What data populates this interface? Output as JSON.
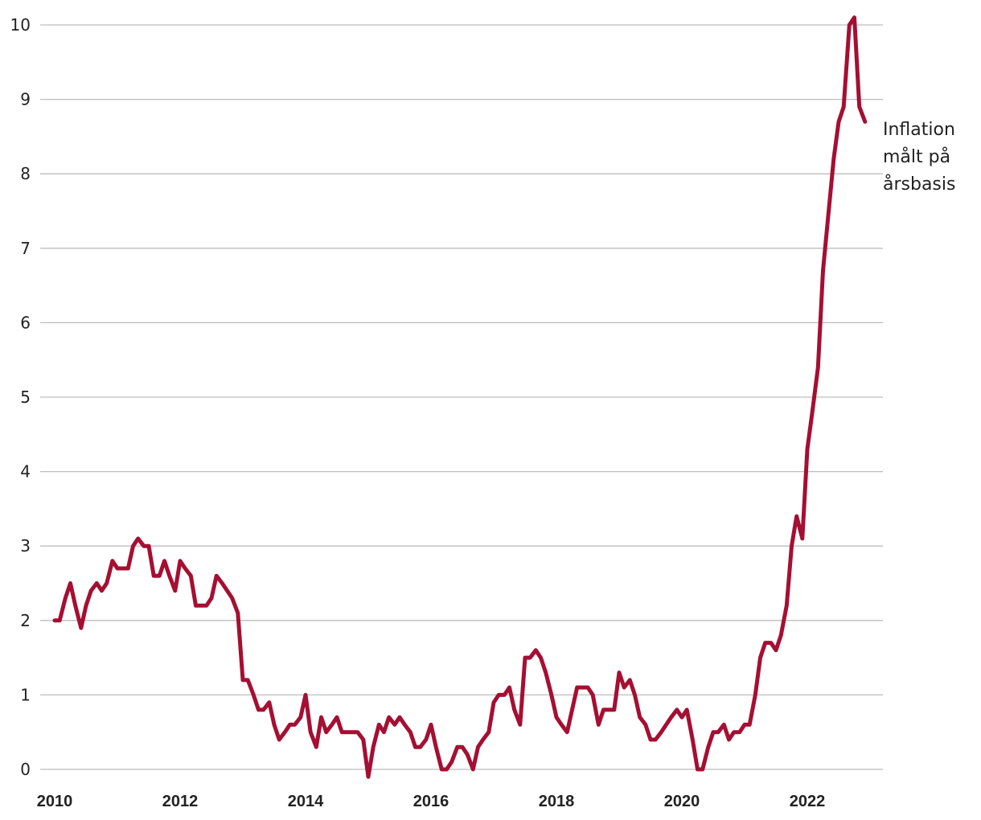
{
  "chart_data": {
    "type": "line",
    "title": "",
    "xlabel": "",
    "ylabel": "",
    "xlim": [
      2010,
      2023.2
    ],
    "ylim": [
      0,
      10
    ],
    "grid": true,
    "yticks": [
      "0",
      "1",
      "2",
      "3",
      "4",
      "5",
      "6",
      "7",
      "8",
      "9",
      "10"
    ],
    "xticks": [
      "2010",
      "2012",
      "2014",
      "2016",
      "2018",
      "2020",
      "2022"
    ],
    "series": [
      {
        "name": "Inflation målt på årsbasis",
        "label_lines": [
          "Inflation",
          "målt på",
          "årsbasis"
        ],
        "color": "#a50f32",
        "x": [
          2010.0,
          2010.08,
          2010.17,
          2010.25,
          2010.33,
          2010.42,
          2010.5,
          2010.58,
          2010.67,
          2010.75,
          2010.83,
          2010.92,
          2011.0,
          2011.08,
          2011.17,
          2011.25,
          2011.33,
          2011.42,
          2011.5,
          2011.58,
          2011.67,
          2011.75,
          2011.83,
          2011.92,
          2012.0,
          2012.08,
          2012.17,
          2012.25,
          2012.33,
          2012.42,
          2012.5,
          2012.58,
          2012.67,
          2012.75,
          2012.83,
          2012.92,
          2013.0,
          2013.08,
          2013.17,
          2013.25,
          2013.33,
          2013.42,
          2013.5,
          2013.58,
          2013.67,
          2013.75,
          2013.83,
          2013.92,
          2014.0,
          2014.08,
          2014.17,
          2014.25,
          2014.33,
          2014.42,
          2014.5,
          2014.58,
          2014.67,
          2014.75,
          2014.83,
          2014.92,
          2015.0,
          2015.08,
          2015.17,
          2015.25,
          2015.33,
          2015.42,
          2015.5,
          2015.58,
          2015.67,
          2015.75,
          2015.83,
          2015.92,
          2016.0,
          2016.08,
          2016.17,
          2016.25,
          2016.33,
          2016.42,
          2016.5,
          2016.58,
          2016.67,
          2016.75,
          2016.83,
          2016.92,
          2017.0,
          2017.08,
          2017.17,
          2017.25,
          2017.33,
          2017.42,
          2017.5,
          2017.58,
          2017.67,
          2017.75,
          2017.83,
          2017.92,
          2018.0,
          2018.08,
          2018.17,
          2018.25,
          2018.33,
          2018.42,
          2018.5,
          2018.58,
          2018.67,
          2018.75,
          2018.83,
          2018.92,
          2019.0,
          2019.08,
          2019.17,
          2019.25,
          2019.33,
          2019.42,
          2019.5,
          2019.58,
          2019.67,
          2019.75,
          2019.83,
          2019.92,
          2020.0,
          2020.08,
          2020.17,
          2020.25,
          2020.33,
          2020.42,
          2020.5,
          2020.58,
          2020.67,
          2020.75,
          2020.83,
          2020.92,
          2021.0,
          2021.08,
          2021.17,
          2021.25,
          2021.33,
          2021.42,
          2021.5,
          2021.58,
          2021.67,
          2021.75,
          2021.83,
          2021.92,
          2022.0,
          2022.08,
          2022.17,
          2022.25,
          2022.33,
          2022.42,
          2022.5,
          2022.58,
          2022.67,
          2022.75,
          2022.83,
          2022.92
        ],
        "y": [
          2.0,
          2.0,
          2.3,
          2.5,
          2.2,
          1.9,
          2.2,
          2.4,
          2.5,
          2.4,
          2.5,
          2.8,
          2.7,
          2.7,
          2.7,
          3.0,
          3.1,
          3.0,
          3.0,
          2.6,
          2.6,
          2.8,
          2.6,
          2.4,
          2.8,
          2.7,
          2.6,
          2.2,
          2.2,
          2.2,
          2.3,
          2.6,
          2.5,
          2.4,
          2.3,
          2.1,
          1.2,
          1.2,
          1.0,
          0.8,
          0.8,
          0.9,
          0.6,
          0.4,
          0.5,
          0.6,
          0.6,
          0.7,
          1.0,
          0.5,
          0.3,
          0.7,
          0.5,
          0.6,
          0.7,
          0.5,
          0.5,
          0.5,
          0.5,
          0.4,
          -0.1,
          0.3,
          0.6,
          0.5,
          0.7,
          0.6,
          0.7,
          0.6,
          0.5,
          0.3,
          0.3,
          0.4,
          0.6,
          0.3,
          0.0,
          0.0,
          0.1,
          0.3,
          0.3,
          0.2,
          0.0,
          0.3,
          0.4,
          0.5,
          0.9,
          1.0,
          1.0,
          1.1,
          0.8,
          0.6,
          1.5,
          1.5,
          1.6,
          1.5,
          1.3,
          1.0,
          0.7,
          0.6,
          0.5,
          0.8,
          1.1,
          1.1,
          1.1,
          1.0,
          0.6,
          0.8,
          0.8,
          0.8,
          1.3,
          1.1,
          1.2,
          1.0,
          0.7,
          0.6,
          0.4,
          0.4,
          0.5,
          0.6,
          0.7,
          0.8,
          0.7,
          0.8,
          0.4,
          0.0,
          0.0,
          0.3,
          0.5,
          0.5,
          0.6,
          0.4,
          0.5,
          0.5,
          0.6,
          0.6,
          1.0,
          1.5,
          1.7,
          1.7,
          1.6,
          1.8,
          2.2,
          3.0,
          3.4,
          3.1,
          4.3,
          4.8,
          5.4,
          6.7,
          7.4,
          8.2,
          8.7,
          8.9,
          10.0,
          10.1,
          8.9,
          8.7
        ]
      }
    ],
    "legend": "none"
  }
}
